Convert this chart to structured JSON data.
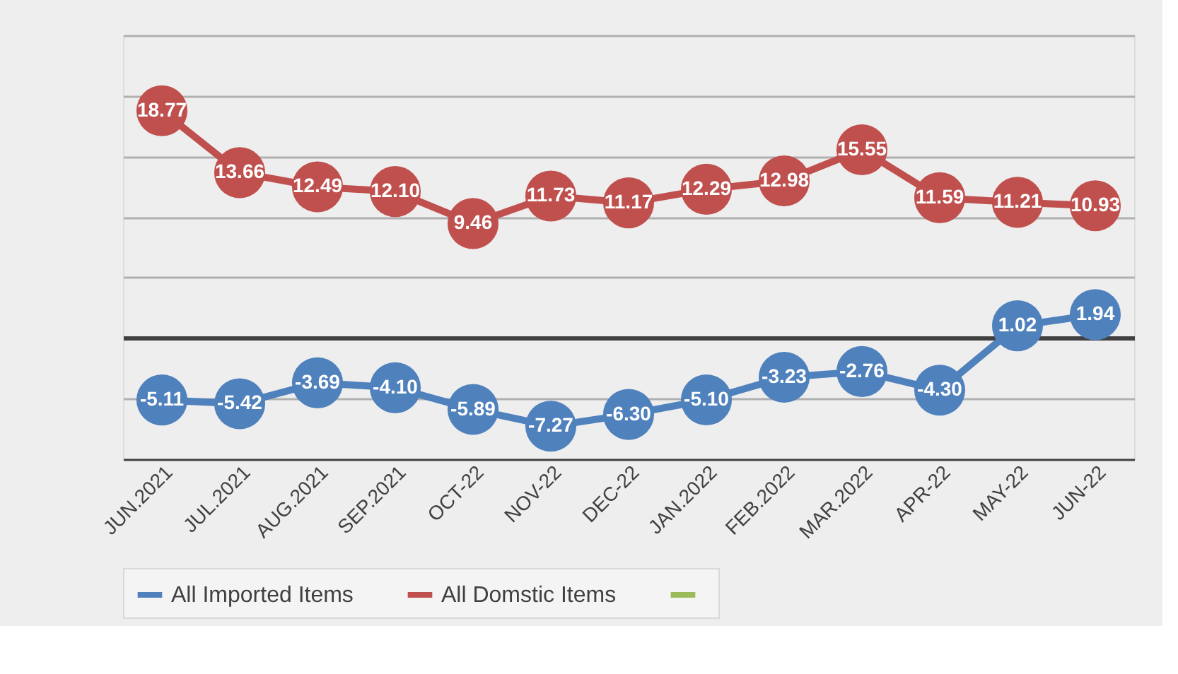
{
  "chart_data": {
    "type": "line",
    "categories": [
      "JUN.2021",
      "JUL.2021",
      "AUG.2021",
      "SEP.2021",
      "OCT-22",
      "NOV-22",
      "DEC-22",
      "JAN.2022",
      "FEB.2022",
      "MAR.2022",
      "APR-22",
      "MAY-22",
      "JUN-22"
    ],
    "series": [
      {
        "name": "All Imported Items",
        "color": "#4f81bd",
        "values": [
          -5.11,
          -5.42,
          -3.69,
          -4.1,
          -5.89,
          -7.27,
          -6.3,
          -5.1,
          -3.23,
          -2.76,
          -4.3,
          1.02,
          1.94
        ],
        "value_labels": [
          "-5.11",
          "-5.42",
          "-3.69",
          "-4.10",
          "-5.89",
          "-7.27",
          "-6.30",
          "-5.10",
          "-3.23",
          "-2.76",
          "-4.30",
          "1.02",
          "1.94"
        ]
      },
      {
        "name": "All Domstic Items",
        "color": "#c0504d",
        "values": [
          18.77,
          13.66,
          12.49,
          12.1,
          9.46,
          11.73,
          11.17,
          12.29,
          12.98,
          15.55,
          11.59,
          11.21,
          10.93
        ],
        "value_labels": [
          "18.77",
          "13.66",
          "12.49",
          "12.10",
          "9.46",
          "11.73",
          "11.17",
          "12.29",
          "12.98",
          "15.55",
          "11.59",
          "11.21",
          "10.93"
        ]
      },
      {
        "color": "#9bbb59",
        "values": [
          null,
          null,
          null,
          null,
          null,
          null,
          null,
          null,
          null,
          null,
          null,
          null,
          null
        ]
      }
    ],
    "ylim": [
      -10,
      25
    ],
    "yticks": [
      -10,
      -5,
      0,
      5,
      10,
      15,
      20,
      25
    ],
    "grid": "y",
    "tick_labels": "x",
    "legend": "bottom",
    "marker": "circle",
    "line_style": "solid"
  }
}
